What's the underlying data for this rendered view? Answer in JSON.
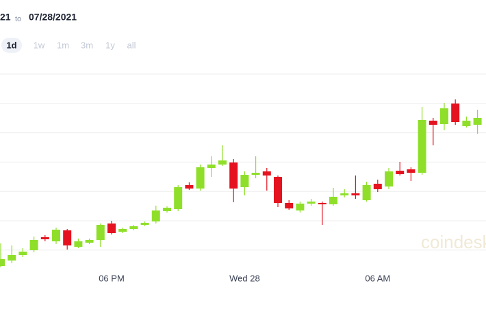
{
  "header": {
    "range_start": "21",
    "range_to": "to",
    "range_end": "07/28/2021",
    "ranges": [
      "1d",
      "1w",
      "1m",
      "3m",
      "1y",
      "all"
    ],
    "selected_range": 0
  },
  "watermark": "coindesk",
  "chart_data": {
    "type": "candlestick",
    "categories": [
      null,
      null,
      null,
      null,
      null,
      null,
      null,
      null,
      null,
      null,
      "06 PM",
      null,
      null,
      null,
      null,
      null,
      null,
      null,
      null,
      null,
      null,
      null,
      "Wed 28",
      null,
      null,
      null,
      null,
      null,
      null,
      null,
      null,
      null,
      null,
      null,
      "06 AM",
      null,
      null,
      null,
      null,
      null,
      null,
      null,
      null,
      null
    ],
    "open": [
      12,
      20,
      28,
      35,
      54,
      48,
      64,
      40,
      46,
      50,
      74,
      62,
      66,
      72,
      77,
      92,
      95,
      130,
      125,
      155,
      160,
      163,
      127,
      145,
      150,
      142,
      104,
      93,
      103,
      104,
      102,
      115,
      118,
      108,
      132,
      128,
      151,
      153,
      148,
      224,
      219,
      249,
      216,
      218
    ],
    "high": [
      45,
      42,
      38,
      55,
      57,
      68,
      66,
      52,
      52,
      74,
      78,
      68,
      72,
      77,
      100,
      99,
      130,
      134,
      160,
      172,
      188,
      168,
      150,
      172,
      155,
      144,
      108,
      106,
      110,
      106,
      126,
      124,
      144,
      135,
      138,
      155,
      164,
      156,
      244,
      228,
      250,
      255,
      230,
      240
    ],
    "low": [
      10,
      16,
      25,
      32,
      48,
      44,
      36,
      38,
      44,
      40,
      58,
      60,
      64,
      70,
      74,
      90,
      92,
      123,
      122,
      142,
      158,
      105,
      115,
      140,
      122,
      98,
      94,
      90,
      100,
      72,
      100,
      112,
      110,
      106,
      120,
      124,
      144,
      136,
      145,
      188,
      210,
      218,
      214,
      205
    ],
    "close": [
      22,
      28,
      33,
      50,
      51,
      65,
      42,
      48,
      50,
      72,
      60,
      66,
      70,
      75,
      93,
      97,
      127,
      125,
      156,
      160,
      166,
      125,
      145,
      148,
      144,
      104,
      96,
      103,
      106,
      102,
      113,
      118,
      115,
      130,
      124,
      150,
      146,
      148,
      225,
      218,
      242,
      222,
      224,
      228
    ],
    "up_color": "#8fdf2a",
    "down_color": "#e5121f",
    "ylim": [
      0,
      300
    ],
    "grid": true
  }
}
